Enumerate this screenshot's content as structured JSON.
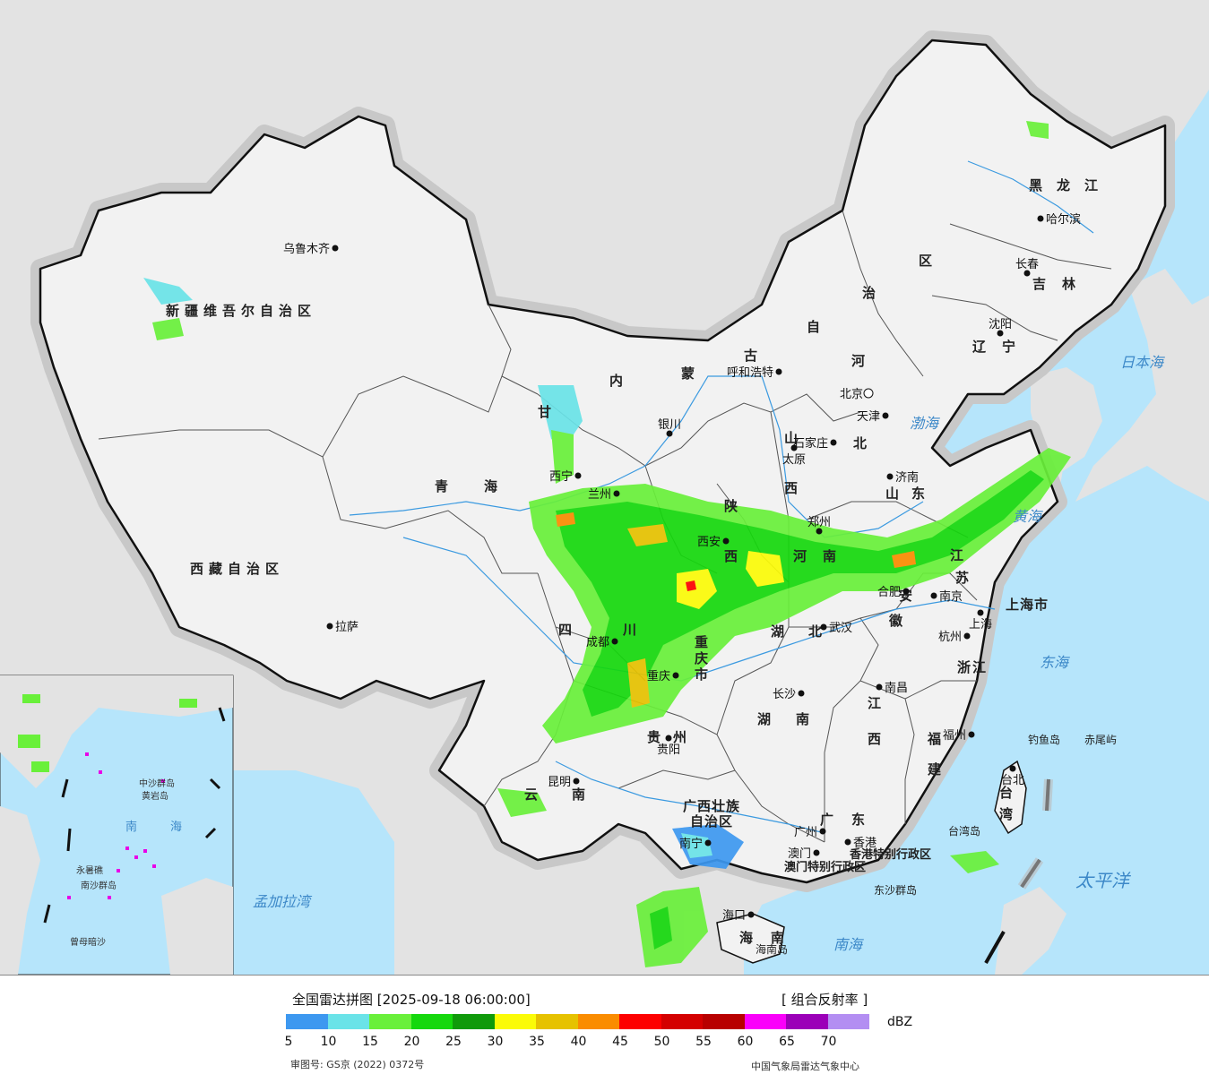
{
  "map": {
    "sea_labels": [
      "日本海",
      "渤海",
      "黄海",
      "东海",
      "太平洋",
      "南海",
      "孟加拉湾"
    ],
    "region_labels": {
      "xinjiang": "新疆维吾尔自治区",
      "tibet": "西藏自治区",
      "qinghai": "青海",
      "inner_mongolia": [
        "内",
        "蒙",
        "古",
        "自",
        "治",
        "区"
      ],
      "gansu": "甘",
      "sichuan": [
        "四",
        "川"
      ],
      "yunnan": [
        "云",
        "南"
      ],
      "guizhou": "贵州",
      "guangxi": [
        "广西壮族",
        "自治区"
      ],
      "guangdong": "广东",
      "hunan": [
        "湖",
        "南"
      ],
      "hubei": [
        "湖",
        "北"
      ],
      "jiangxi": [
        "江",
        "西"
      ],
      "fujian": [
        "福",
        "建"
      ],
      "zhejiang": "浙江",
      "anhui": [
        "安",
        "徽"
      ],
      "jiangsu": [
        "江",
        "苏"
      ],
      "shandong": "山东",
      "henan": "河南",
      "hebei": [
        "河",
        "北"
      ],
      "shanxi": [
        "山",
        "西"
      ],
      "shaanxi": [
        "陕",
        "西"
      ],
      "chongqing": [
        "重",
        "庆",
        "市"
      ],
      "heilongjiang": "黑龙江",
      "jilin": "吉林",
      "liaoning": "辽宁",
      "taiwan": [
        "台",
        "湾"
      ],
      "hainan": [
        "海",
        "南"
      ],
      "shanghai_region": "上海市",
      "hk": "香港特别行政区",
      "macau": "澳门特别行政区"
    },
    "cities": [
      {
        "name": "乌鲁木齐"
      },
      {
        "name": "拉萨"
      },
      {
        "name": "西宁"
      },
      {
        "name": "兰州"
      },
      {
        "name": "银川"
      },
      {
        "name": "呼和浩特"
      },
      {
        "name": "北京"
      },
      {
        "name": "天津"
      },
      {
        "name": "石家庄"
      },
      {
        "name": "太原"
      },
      {
        "name": "济南"
      },
      {
        "name": "郑州"
      },
      {
        "name": "西安"
      },
      {
        "name": "成都"
      },
      {
        "name": "重庆"
      },
      {
        "name": "武汉"
      },
      {
        "name": "合肥"
      },
      {
        "name": "南京"
      },
      {
        "name": "上海"
      },
      {
        "name": "杭州"
      },
      {
        "name": "长沙"
      },
      {
        "name": "南昌"
      },
      {
        "name": "福州"
      },
      {
        "name": "台北"
      },
      {
        "name": "贵阳"
      },
      {
        "name": "昆明"
      },
      {
        "name": "南宁"
      },
      {
        "name": "广州"
      },
      {
        "name": "澳门"
      },
      {
        "name": "香港"
      },
      {
        "name": "海口"
      },
      {
        "name": "哈尔滨"
      },
      {
        "name": "长春"
      },
      {
        "name": "沈阳"
      }
    ],
    "islands": [
      "钓鱼岛",
      "赤尾屿",
      "台湾岛",
      "东沙群岛",
      "海南岛"
    ],
    "inset_labels": [
      "南",
      "海",
      "中沙群岛",
      "黄岩岛",
      "永暑礁",
      "南沙群岛",
      "曾母暗沙"
    ],
    "colors": {
      "sea": "#b6e5fb",
      "land_china": "#f2f2f2",
      "land_foreign": "#e3e3e3",
      "border": "#111111",
      "river": "#3b9ae0"
    }
  },
  "legend": {
    "title": "全国雷达拼图 [2025-09-18 06:00:00]",
    "product": "[ 组合反射率 ]",
    "unit": "dBZ",
    "ticks": [
      "5",
      "10",
      "15",
      "20",
      "25",
      "30",
      "35",
      "40",
      "45",
      "50",
      "55",
      "60",
      "65",
      "70"
    ],
    "colors": [
      "#3d98f0",
      "#6ae3e8",
      "#69f03a",
      "#15d80d",
      "#109a0b",
      "#fbfb07",
      "#e6c200",
      "#fa8c00",
      "#fd0000",
      "#d40000",
      "#b80000",
      "#fa00fa",
      "#9b00b8",
      "#b38ef2"
    ],
    "approval": "审图号: GS京 (2022) 0372号",
    "agency": "中国气象局雷达气象中心"
  }
}
